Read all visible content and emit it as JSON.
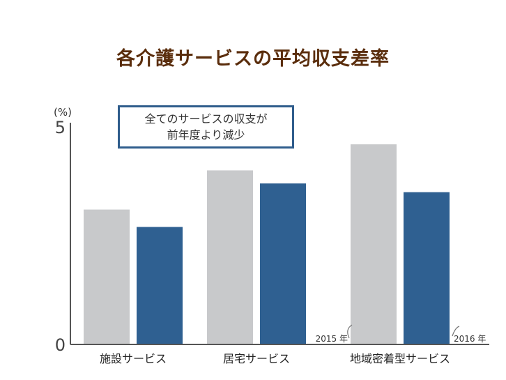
{
  "chart_data": {
    "type": "bar",
    "title": "各介護サービスの平均収支差率",
    "ylabel": "(%)",
    "ylim": [
      0,
      5
    ],
    "yticks": [
      "0",
      "5"
    ],
    "categories": [
      "施設サービス",
      "居宅サービス",
      "地域密着型サービス"
    ],
    "series": [
      {
        "name": "2015 年",
        "color": "#c8c9cb",
        "values": [
          3.1,
          4.0,
          4.6
        ]
      },
      {
        "name": "2016 年",
        "color": "#2f6091",
        "values": [
          2.7,
          3.7,
          3.5
        ]
      }
    ],
    "annotation": [
      "全てのサービスの収支が",
      "前年度より減少"
    ]
  }
}
